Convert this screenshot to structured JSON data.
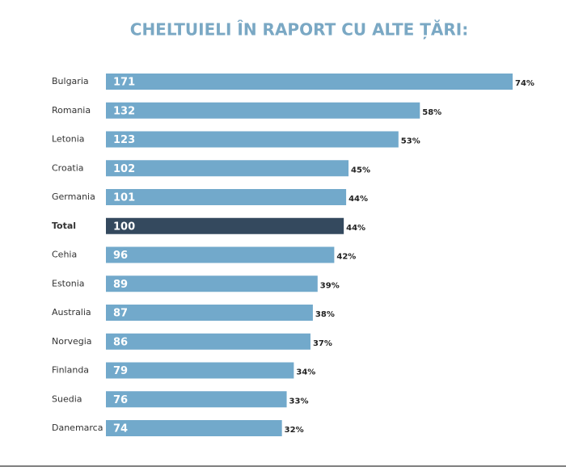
{
  "chart_data": {
    "type": "bar",
    "orientation": "horizontal",
    "title": "CHELTUIELI ÎN RAPORT CU ALTE ȚĂRI:",
    "categories": [
      "Bulgaria",
      "Romania",
      "Letonia",
      "Croatia",
      "Germania",
      "Total",
      "Cehia",
      "Estonia",
      "Australia",
      "Norvegia",
      "Finlanda",
      "Suedia",
      "Danemarca"
    ],
    "values": [
      171,
      132,
      123,
      102,
      101,
      100,
      96,
      89,
      87,
      86,
      79,
      76,
      74
    ],
    "percentages": [
      74,
      58,
      53,
      45,
      44,
      44,
      42,
      39,
      38,
      37,
      34,
      33,
      32
    ],
    "percentage_labels": [
      "74%",
      "58%",
      "53%",
      "45%",
      "44%",
      "44%",
      "42%",
      "39%",
      "38%",
      "37%",
      "34%",
      "33%",
      "32%"
    ],
    "color": "#72a9cb",
    "highlight": "Total",
    "highlight_color": "#34495e"
  }
}
